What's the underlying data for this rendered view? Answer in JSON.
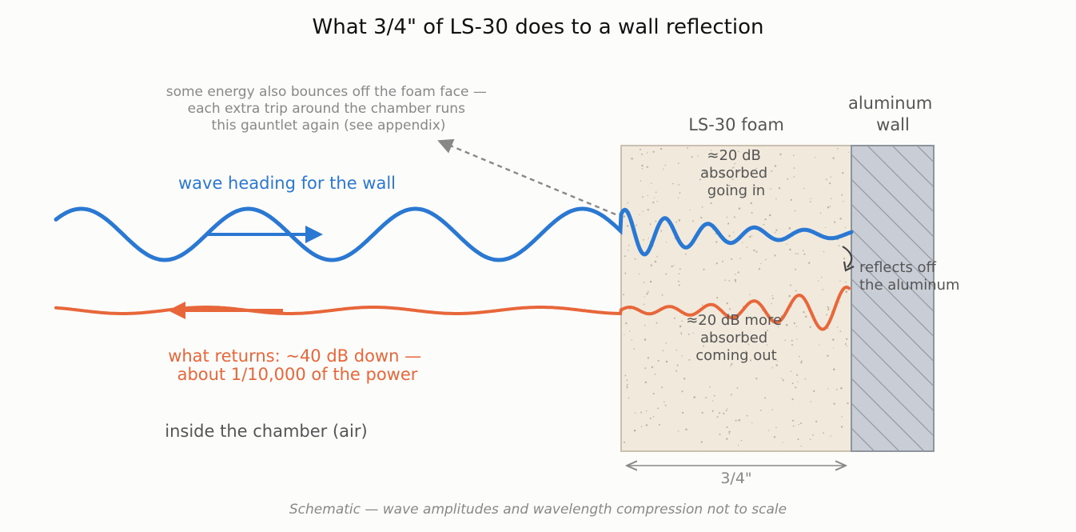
{
  "title": "What 3/4\" of LS-30 does to a wall reflection",
  "labels": {
    "foam": "LS-30 foam",
    "wall_line1": "aluminum",
    "wall_line2": "wall",
    "incoming": "wave heading for the wall",
    "returning_line1": "what returns: ~40 dB down —",
    "returning_line2": "about 1/10,000 of the power",
    "chamber": "inside the chamber (air)",
    "bounce_line1": "some energy also bounces off the foam face —",
    "bounce_line2": "each extra trip around the chamber runs",
    "bounce_line3": "this gauntlet again (see appendix)",
    "absorb_in_line1": "≈20 dB",
    "absorb_in_line2": "absorbed",
    "absorb_in_line3": "going in",
    "absorb_out_line1": "≈20 dB more",
    "absorb_out_line2": "absorbed",
    "absorb_out_line3": "coming out",
    "reflects_line1": "reflects off",
    "reflects_line2": "the aluminum",
    "thickness": "3/4\"",
    "footnote": "Schematic — wave amplitudes and wavelength compression not to scale"
  },
  "colors": {
    "incoming": "#2b78d3",
    "returning": "#e8673a",
    "foam_fill": "#f0e9dc",
    "foam_stroke": "#c9c0b0",
    "wall_fill": "#c8cdd6",
    "wall_hatch": "#8e949c",
    "muted_text": "#888888",
    "dark_text": "#555555",
    "title_text": "#111111"
  }
}
